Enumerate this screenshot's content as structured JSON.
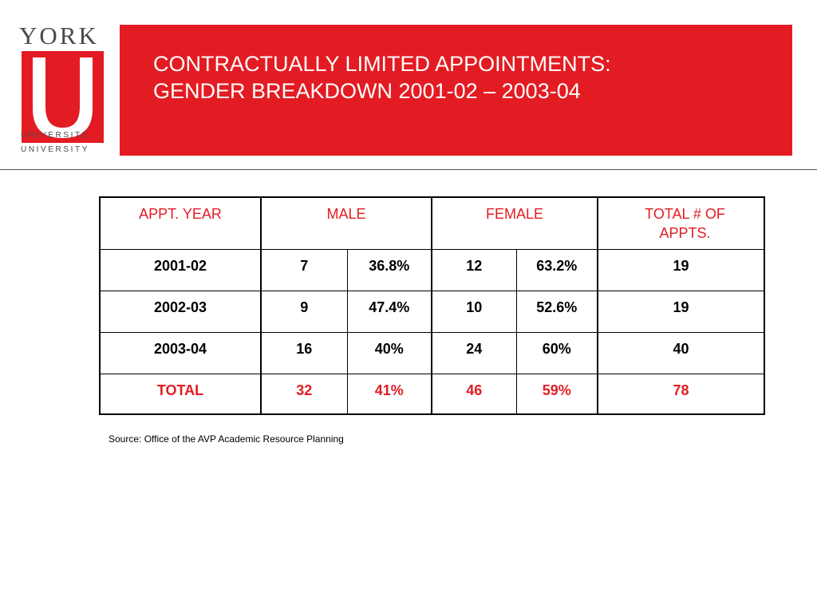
{
  "logo": {
    "wordmark": "YORK",
    "line_fr": "UNIVERSITÉ",
    "line_en": "UNIVERSITY"
  },
  "header": {
    "title_line1": "CONTRACTUALLY LIMITED APPOINTMENTS:",
    "title_line2": "GENDER BREAKDOWN 2001-02 – 2003-04",
    "band_color": "#e31c23"
  },
  "table": {
    "headers": {
      "year": "APPT. YEAR",
      "male": "MALE",
      "female": "FEMALE",
      "total": "TOTAL # OF APPTS."
    },
    "rows": [
      {
        "year": "2001-02",
        "male_n": "7",
        "male_pct": "36.8%",
        "female_n": "12",
        "female_pct": "63.2%",
        "total": "19"
      },
      {
        "year": "2002-03",
        "male_n": "9",
        "male_pct": "47.4%",
        "female_n": "10",
        "female_pct": "52.6%",
        "total": "19"
      },
      {
        "year": "2003-04",
        "male_n": "16",
        "male_pct": "40%",
        "female_n": "24",
        "female_pct": "60%",
        "total": "40"
      }
    ],
    "total_row": {
      "year": "TOTAL",
      "male_n": "32",
      "male_pct": "41%",
      "female_n": "46",
      "female_pct": "59%",
      "total": "78"
    }
  },
  "source": "Source:  Office of the AVP Academic Resource Planning"
}
